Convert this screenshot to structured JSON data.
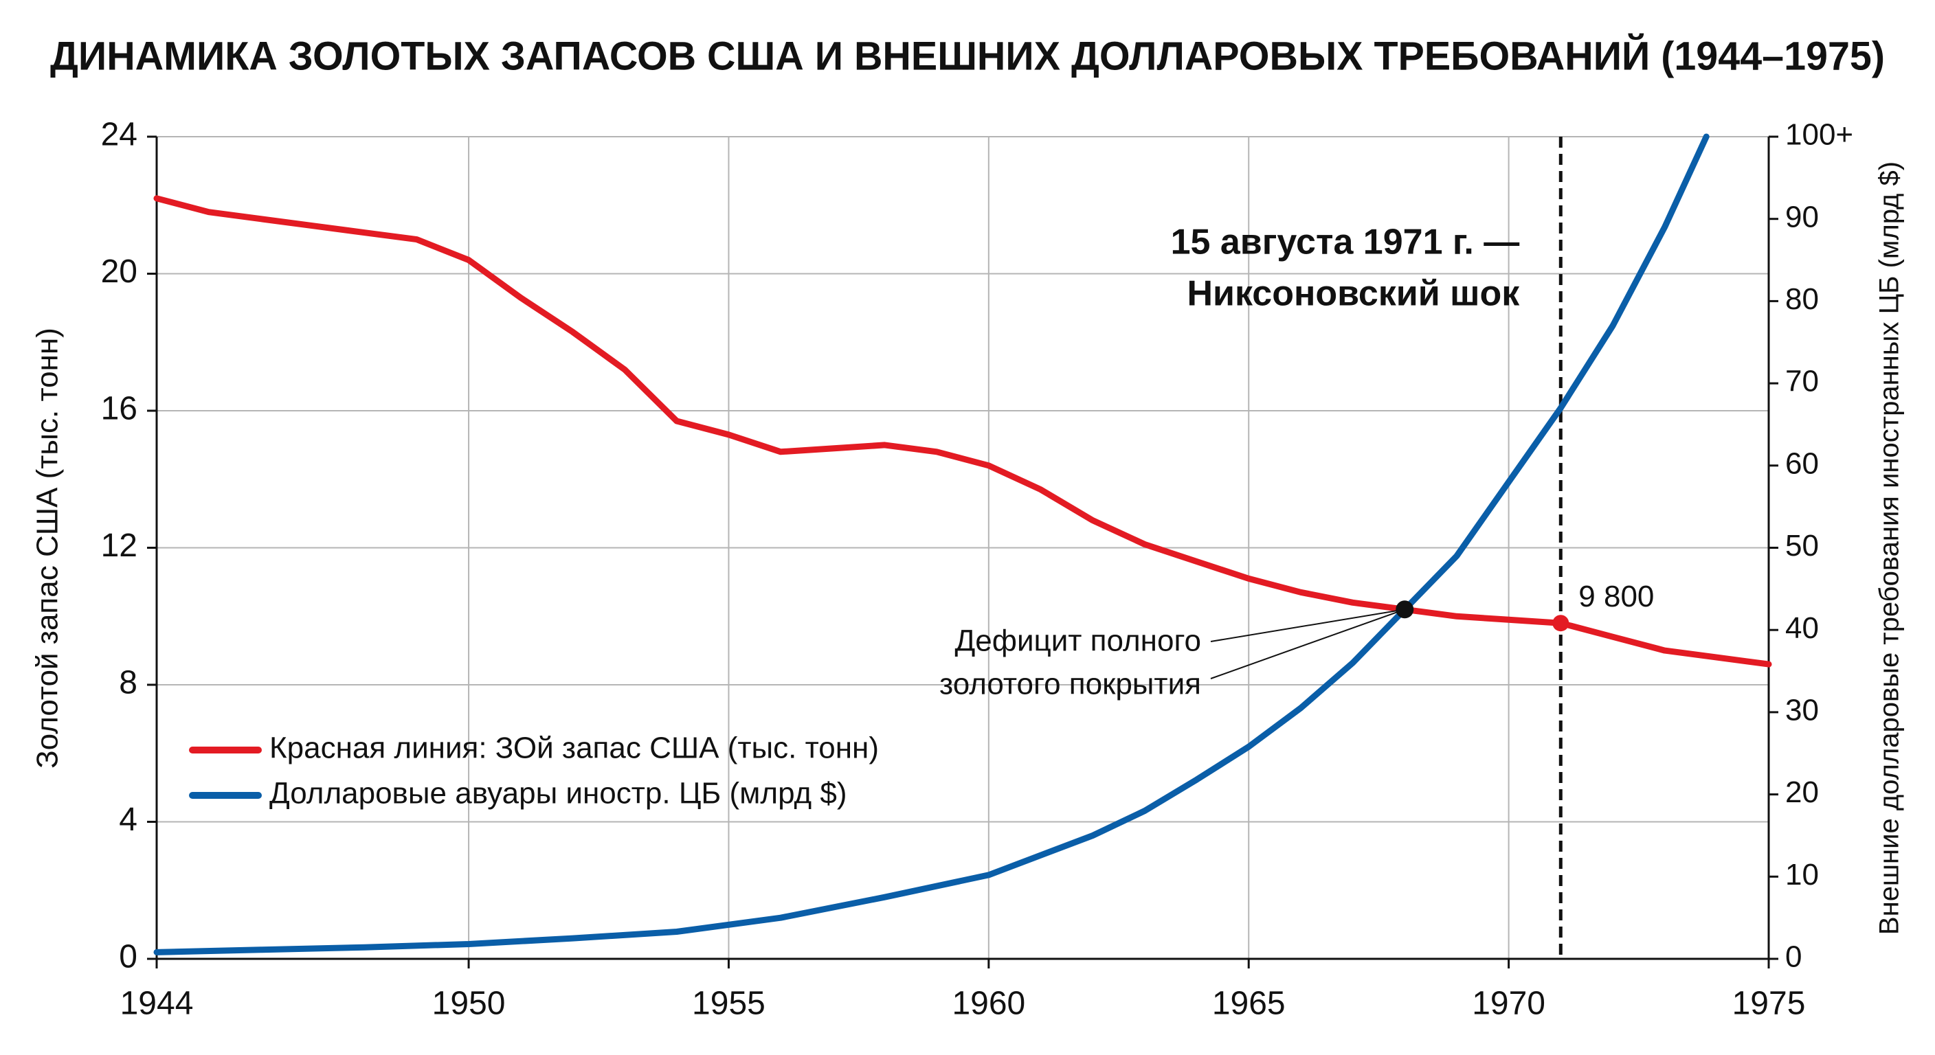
{
  "chart_data": {
    "type": "line",
    "title": "ДИНАМИКА ЗОЛОТЫХ ЗАПАСОВ США И ВНЕШНИХ ДОЛЛАРОВЫХ ТРЕБОВАНИЙ (1944–1975)",
    "ylabel": "Золотой запас США (тыс. тонн)",
    "y2label": "Внешние долларовые требования иностранных ЦБ (млрд $)",
    "xlim": [
      1944,
      1975
    ],
    "xticks": [
      1944,
      1950,
      1955,
      1960,
      1965,
      1970,
      1975
    ],
    "ylim": [
      0,
      24
    ],
    "yticks": [
      0,
      4,
      8,
      12,
      16,
      20,
      24
    ],
    "y2lim": [
      0,
      100
    ],
    "y2ticks": [
      0,
      10,
      20,
      30,
      40,
      50,
      60,
      70,
      80,
      90,
      {
        "value": 100,
        "label": "100+"
      }
    ],
    "grid": true,
    "legend": "lower left",
    "series": [
      {
        "name": "Красная линия: ЗОй запас США (тыс. тонн)",
        "color": "#e31b23",
        "axis": "y",
        "x": [
          1944,
          1945,
          1946,
          1947,
          1948,
          1949,
          1950,
          1951,
          1952,
          1953,
          1954,
          1955,
          1956,
          1957,
          1958,
          1959,
          1960,
          1961,
          1962,
          1963,
          1964,
          1965,
          1966,
          1967,
          1968,
          1969,
          1970,
          1971,
          1972,
          1973,
          1974,
          1975
        ],
        "values": [
          22.2,
          21.8,
          21.6,
          21.4,
          21.2,
          21.0,
          20.4,
          19.3,
          18.3,
          17.2,
          15.7,
          15.3,
          14.8,
          14.9,
          15.0,
          14.8,
          14.4,
          13.7,
          12.8,
          12.1,
          11.6,
          11.1,
          10.7,
          10.4,
          10.2,
          10.0,
          9.9,
          9.8,
          9.4,
          9.0,
          8.8,
          8.6
        ],
        "value_labels": [
          null,
          null,
          null,
          null,
          null,
          null,
          null,
          null,
          null,
          null,
          null,
          null,
          null,
          null,
          null,
          null,
          null,
          null,
          null,
          null,
          null,
          null,
          null,
          null,
          null,
          null,
          null,
          "9 800",
          null,
          null,
          null,
          null
        ]
      },
      {
        "name": "Долларовые авуары иностр. ЦБ (млрд $)",
        "color": "#0a5ea8",
        "axis": "y2",
        "x": [
          1944,
          1946,
          1948,
          1950,
          1952,
          1954,
          1956,
          1958,
          1960,
          1962,
          1963,
          1964,
          1965,
          1966,
          1967,
          1968,
          1969,
          1970,
          1971,
          1972,
          1973,
          1973.8
        ],
        "values": [
          0.8,
          1.1,
          1.4,
          1.8,
          2.5,
          3.3,
          5.0,
          7.5,
          10.2,
          15,
          18,
          21.8,
          25.8,
          30.5,
          36,
          42.5,
          49,
          58,
          67,
          77,
          89,
          100
        ]
      }
    ],
    "annotations": {
      "nixon_shock": {
        "x": 1971,
        "lines": [
          "15 августа 1971 г. —",
          "Никсоновский шок"
        ]
      },
      "deficit": {
        "x": 1968,
        "y": 10.2,
        "lines": [
          "Дефицит полного",
          "золотого покрытия"
        ]
      }
    }
  }
}
